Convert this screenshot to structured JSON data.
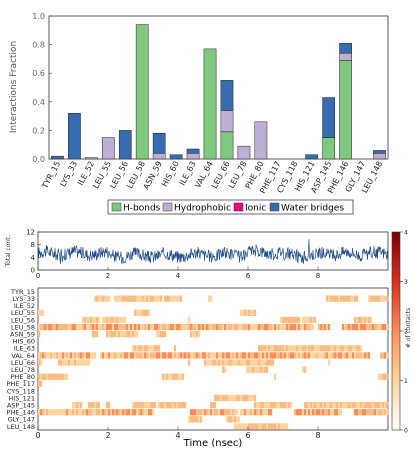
{
  "chart_data": [
    {
      "type": "bar",
      "stacked": true,
      "title": "",
      "xlabel": "",
      "ylabel": "Interactions Fraction",
      "ylim": [
        0,
        1.0
      ],
      "yticks": [
        "0.0",
        "0.2",
        "0.4",
        "0.6",
        "0.8",
        "1.0"
      ],
      "grid": false,
      "legend_position": "bottom-center",
      "categories": [
        "TYR_15",
        "LYS_33",
        "ILE_52",
        "LEU_55",
        "LEU_56",
        "LEU_58",
        "ASN_59",
        "HIS_60",
        "ILE_63",
        "VAL_64",
        "LEU_66",
        "LEU_78",
        "PHE_80",
        "PHE_117",
        "CYS_118",
        "HIS_121",
        "ASP_145",
        "PHE_146",
        "GLY_147",
        "LEU_148"
      ],
      "series": [
        {
          "name": "H-bonds",
          "color": "#7fc97f",
          "values": [
            0.0,
            0.0,
            0.0,
            0.0,
            0.0,
            0.94,
            0.0,
            0.0,
            0.0,
            0.77,
            0.19,
            0.0,
            0.0,
            0.0,
            0.0,
            0.0,
            0.15,
            0.69,
            0.0,
            0.0
          ]
        },
        {
          "name": "Hydrophobic",
          "color": "#beaed4",
          "values": [
            0.0,
            0.0,
            0.01,
            0.15,
            0.0,
            0.0,
            0.04,
            0.0,
            0.04,
            0.0,
            0.15,
            0.09,
            0.26,
            0.0,
            0.0,
            0.0,
            0.0,
            0.05,
            0.0,
            0.04
          ]
        },
        {
          "name": "Ionic",
          "color": "#f0027f",
          "values": [
            0,
            0,
            0,
            0,
            0,
            0,
            0,
            0,
            0,
            0,
            0,
            0,
            0,
            0,
            0,
            0,
            0,
            0,
            0,
            0
          ]
        },
        {
          "name": "Water bridges",
          "color": "#386cb0",
          "values": [
            0.02,
            0.32,
            0.0,
            0.0,
            0.2,
            0.0,
            0.14,
            0.03,
            0.03,
            0.0,
            0.21,
            0.0,
            0.0,
            0.0,
            0.0,
            0.03,
            0.28,
            0.07,
            0.0,
            0.02
          ]
        }
      ]
    },
    {
      "type": "line",
      "title": "",
      "xlabel": "",
      "ylabel": "Total cont.",
      "ylim": [
        0,
        12
      ],
      "yticks": [
        "0",
        "4",
        "8",
        "12"
      ],
      "xlim": [
        0,
        10
      ],
      "series_color": "#1f4e8c",
      "mean": 5.0,
      "segments": [
        {
          "x_start": 0.0,
          "x_end": 2.0,
          "level": 5.3
        },
        {
          "x_start": 2.0,
          "x_end": 4.0,
          "level": 4.6
        },
        {
          "x_start": 4.0,
          "x_end": 6.0,
          "level": 4.8
        },
        {
          "x_start": 6.0,
          "x_end": 7.0,
          "level": 5.6
        },
        {
          "x_start": 7.0,
          "x_end": 8.0,
          "level": 4.6
        },
        {
          "x_start": 8.0,
          "x_end": 10.0,
          "level": 5.2
        }
      ]
    },
    {
      "type": "heatmap",
      "title": "",
      "xlabel": "Time (nsec)",
      "xlim": [
        0,
        10
      ],
      "xticks": [
        "0",
        "2",
        "4",
        "6",
        "8"
      ],
      "rows": [
        "TYR_15",
        "LYS_33",
        "ILE_52",
        "LEU_55",
        "LEU_56",
        "LEU_58",
        "ASN_59",
        "HIS_60",
        "ILE_63",
        "VAL_64",
        "LEU_66",
        "LEU_78",
        "PHE_80",
        "PHE_117",
        "CYS_118",
        "HIS_121",
        "ASP_145",
        "PHE_146",
        "GLY_147",
        "LEU_148"
      ],
      "row_occupancy": [
        0.02,
        0.3,
        0.05,
        0.15,
        0.2,
        0.92,
        0.15,
        0.05,
        0.1,
        0.88,
        0.5,
        0.12,
        0.25,
        0.02,
        0.02,
        0.03,
        0.45,
        0.9,
        0.02,
        0.05
      ],
      "colorbar": {
        "label": "# of contacts",
        "ticks": [
          "0",
          "1",
          "2",
          "3",
          "4"
        ],
        "colors": [
          "#ffffff",
          "#fdd49e",
          "#fc8d59",
          "#d7301f",
          "#7f0000"
        ]
      }
    }
  ]
}
